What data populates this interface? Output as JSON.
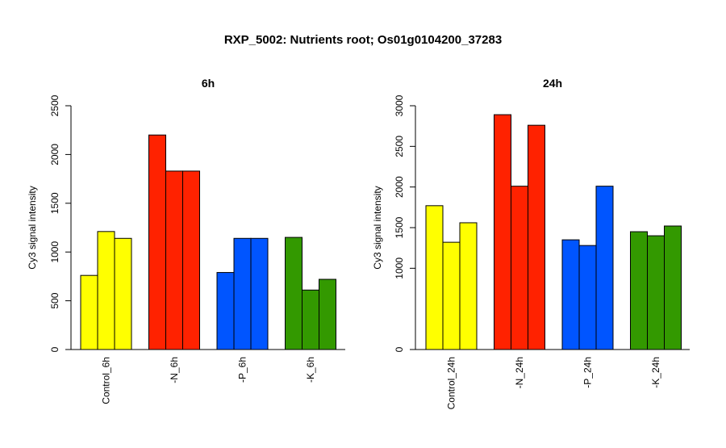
{
  "main_title": "RXP_5002: Nutrients root; Os01g0104200_37283",
  "chart_data": [
    {
      "type": "bar",
      "title": "6h",
      "ylabel": "Cy3 signal intensity",
      "ylim": [
        0,
        2500
      ],
      "yticks": [
        0,
        500,
        1000,
        1500,
        2000,
        2500
      ],
      "grid": false,
      "groups": [
        {
          "label": "Control_6h",
          "color": "#ffff00",
          "values": [
            760,
            1210,
            1140
          ]
        },
        {
          "label": "-N_6h",
          "color": "#ff2200",
          "values": [
            2200,
            1830,
            1830
          ]
        },
        {
          "label": "-P_6h",
          "color": "#0055ff",
          "values": [
            790,
            1140,
            1140
          ]
        },
        {
          "label": "-K_6h",
          "color": "#339900",
          "values": [
            1150,
            610,
            720
          ]
        }
      ]
    },
    {
      "type": "bar",
      "title": "24h",
      "ylabel": "Cy3 signal intensity",
      "ylim": [
        0,
        3000
      ],
      "yticks": [
        0,
        1000,
        1500,
        2000,
        2500,
        3000
      ],
      "grid": false,
      "groups": [
        {
          "label": "Control_24h",
          "color": "#ffff00",
          "values": [
            1770,
            1320,
            1560
          ]
        },
        {
          "label": "-N_24h",
          "color": "#ff2200",
          "values": [
            2890,
            2010,
            2760
          ]
        },
        {
          "label": "-P_24h",
          "color": "#0055ff",
          "values": [
            1350,
            1280,
            2010
          ]
        },
        {
          "label": "-K_24h",
          "color": "#339900",
          "values": [
            1450,
            1400,
            1520
          ]
        }
      ]
    }
  ]
}
